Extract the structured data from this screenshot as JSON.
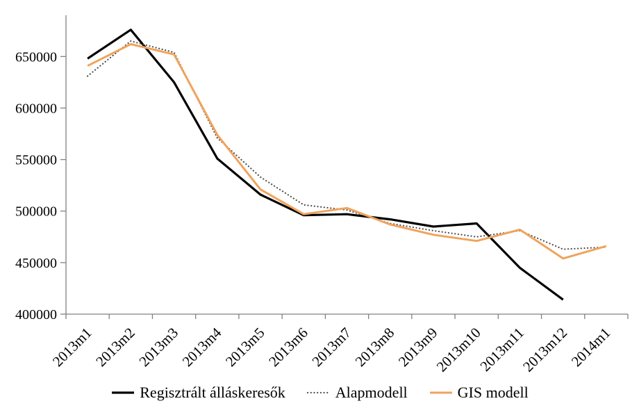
{
  "chart_data": {
    "type": "line",
    "title": "",
    "xlabel": "",
    "ylabel": "",
    "grid": false,
    "legend_position": "bottom",
    "axis_color": "#808080",
    "text_color": "#000000",
    "categories": [
      "2013m1",
      "2013m2",
      "2013m3",
      "2013m4",
      "2013m5",
      "2013m6",
      "2013m7",
      "2013m8",
      "2013m9",
      "2013m10",
      "2013m11",
      "2013m12",
      "2014m1"
    ],
    "yticks": [
      400000,
      450000,
      500000,
      550000,
      600000,
      650000
    ],
    "ylim": [
      400000,
      690000
    ],
    "series": [
      {
        "name": "Regisztrált álláskeresők",
        "style": "solid",
        "color": "#000000",
        "width": 3.2,
        "values": [
          648000,
          676000,
          625000,
          551000,
          516000,
          496000,
          497000,
          492000,
          485000,
          488000,
          445000,
          414000,
          null
        ]
      },
      {
        "name": "Alapmodell",
        "style": "dotted",
        "color": "#4d4d4d",
        "width": 2.2,
        "values": [
          631000,
          665000,
          654000,
          571000,
          533000,
          506000,
          501000,
          488000,
          481000,
          475000,
          481000,
          463000,
          465000
        ]
      },
      {
        "name": "GIS modell",
        "style": "solid",
        "color": "#f0a35c",
        "width": 3,
        "values": [
          641000,
          662000,
          652000,
          574000,
          521000,
          497000,
          503000,
          487000,
          477000,
          471000,
          482000,
          454000,
          466000
        ]
      }
    ]
  }
}
